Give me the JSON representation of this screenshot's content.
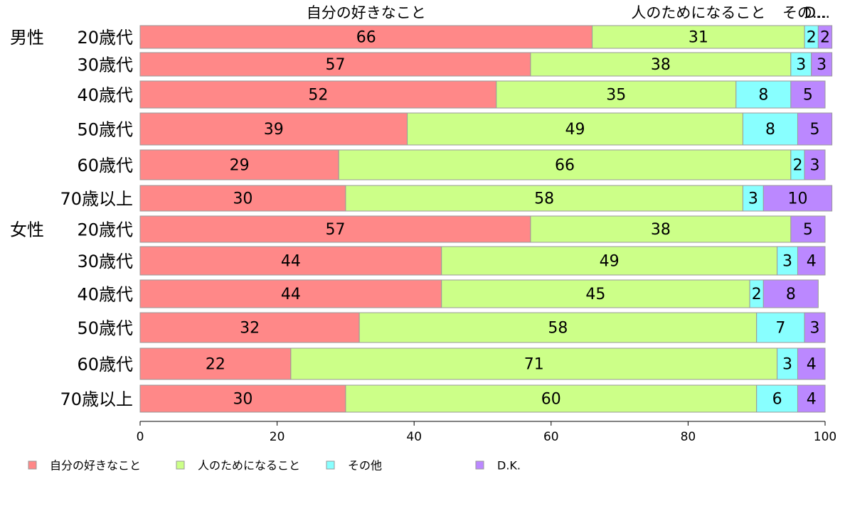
{
  "chart_data": {
    "type": "bar",
    "orientation": "horizontal",
    "stacked": true,
    "xlim": [
      0,
      100
    ],
    "x_ticks": [
      "0",
      "20",
      "40",
      "60",
      "80",
      "100"
    ],
    "group_labels": [
      {
        "label": "男性",
        "row": 0
      },
      {
        "label": "女性",
        "row": 6
      }
    ],
    "categories": [
      "20歳代",
      "30歳代",
      "40歳代",
      "50歳代",
      "60歳代",
      "70歳以上",
      "20歳代",
      "30歳代",
      "40歳代",
      "50歳代",
      "60歳代",
      "70歳以上"
    ],
    "top_headers": [
      "自分の好きなこと",
      "人のためになること",
      "その...",
      "D..."
    ],
    "series": [
      {
        "name": "自分の好きなこと",
        "color": "#ff8888",
        "values": [
          66,
          57,
          52,
          39,
          29,
          30,
          57,
          44,
          44,
          32,
          22,
          30
        ]
      },
      {
        "name": "人のためになること",
        "color": "#ccff88",
        "values": [
          31,
          38,
          35,
          49,
          66,
          58,
          38,
          49,
          45,
          58,
          71,
          60
        ]
      },
      {
        "name": "その他",
        "color": "#88ffff",
        "values": [
          2,
          3,
          8,
          8,
          2,
          3,
          0,
          3,
          2,
          7,
          3,
          6
        ]
      },
      {
        "name": "D.K.",
        "color": "#bb88ff",
        "values": [
          2,
          3,
          5,
          5,
          3,
          10,
          5,
          4,
          8,
          3,
          4,
          4
        ]
      }
    ],
    "legend": {
      "position": "bottom-left",
      "items": [
        "自分の好きなこと",
        "人のためになること",
        "その他",
        "D.K."
      ]
    },
    "grid": false
  }
}
